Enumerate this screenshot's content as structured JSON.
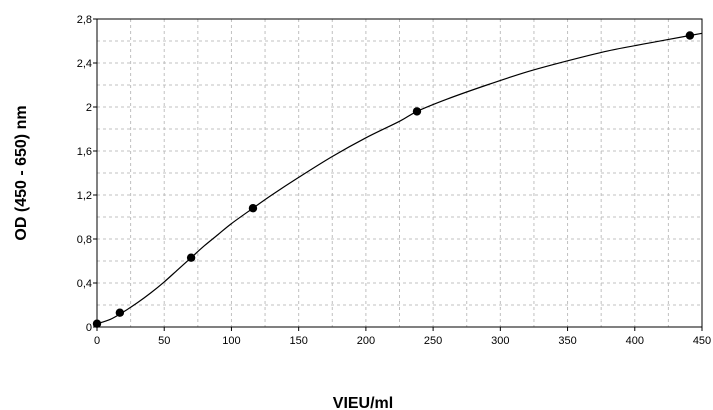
{
  "chart_data": {
    "type": "scatter",
    "title": "",
    "xlabel": "VIEU/ml",
    "ylabel": "OD (450 - 650) nm",
    "xlim": [
      0,
      450
    ],
    "ylim": [
      0,
      2.8
    ],
    "x_ticks": [
      "0",
      "50",
      "100",
      "150",
      "200",
      "250",
      "300",
      "350",
      "400",
      "450"
    ],
    "y_ticks": [
      "0",
      "0,4",
      "0,8",
      "1,2",
      "1,6",
      "2",
      "2,4",
      "2,8"
    ],
    "grid": true,
    "legend": "none",
    "series": [
      {
        "points": [
          {
            "x": 0,
            "y": 0.03
          },
          {
            "x": 17,
            "y": 0.13
          },
          {
            "x": 70,
            "y": 0.63
          },
          {
            "x": 116,
            "y": 1.08
          },
          {
            "x": 238,
            "y": 1.96
          },
          {
            "x": 441,
            "y": 2.65
          }
        ]
      }
    ],
    "fit_curve": [
      {
        "x": 0,
        "y": 0.03
      },
      {
        "x": 10,
        "y": 0.07
      },
      {
        "x": 20,
        "y": 0.14
      },
      {
        "x": 30,
        "y": 0.22
      },
      {
        "x": 40,
        "y": 0.31
      },
      {
        "x": 50,
        "y": 0.41
      },
      {
        "x": 60,
        "y": 0.52
      },
      {
        "x": 70,
        "y": 0.63
      },
      {
        "x": 80,
        "y": 0.74
      },
      {
        "x": 90,
        "y": 0.84
      },
      {
        "x": 100,
        "y": 0.94
      },
      {
        "x": 116,
        "y": 1.08
      },
      {
        "x": 130,
        "y": 1.2
      },
      {
        "x": 150,
        "y": 1.36
      },
      {
        "x": 175,
        "y": 1.55
      },
      {
        "x": 200,
        "y": 1.72
      },
      {
        "x": 225,
        "y": 1.87
      },
      {
        "x": 238,
        "y": 1.96
      },
      {
        "x": 260,
        "y": 2.07
      },
      {
        "x": 290,
        "y": 2.2
      },
      {
        "x": 320,
        "y": 2.32
      },
      {
        "x": 350,
        "y": 2.42
      },
      {
        "x": 380,
        "y": 2.51
      },
      {
        "x": 410,
        "y": 2.58
      },
      {
        "x": 441,
        "y": 2.65
      },
      {
        "x": 450,
        "y": 2.67
      }
    ],
    "colors": {
      "marker": "#000000",
      "line": "#000000",
      "grid": "#c0c0c0",
      "frame": "#000000"
    }
  }
}
